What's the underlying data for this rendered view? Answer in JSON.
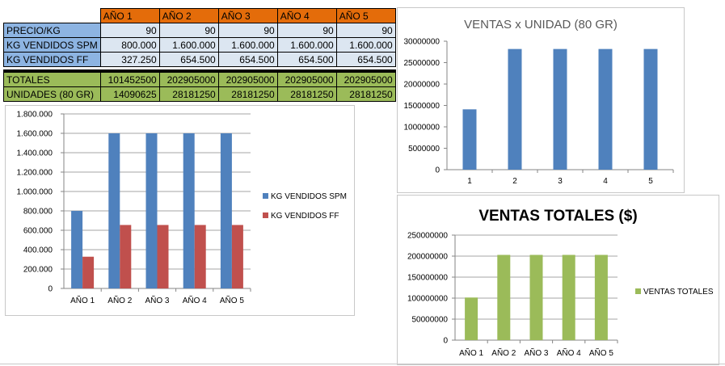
{
  "table": {
    "headers": [
      "AÑO 1",
      "AÑO 2",
      "AÑO 3",
      "AÑO 4",
      "AÑO 5"
    ],
    "rows": [
      {
        "label": "PRECIO/KG",
        "values": [
          "90",
          "90",
          "90",
          "90",
          "90"
        ]
      },
      {
        "label": "KG VENDIDOS SPM",
        "values": [
          "800.000",
          "1.600.000",
          "1.600.000",
          "1.600.000",
          "1.600.000"
        ]
      },
      {
        "label": "KG VENDIDOS FF",
        "values": [
          "327.250",
          "654.500",
          "654.500",
          "654.500",
          "654.500"
        ]
      },
      {
        "label": "TOTALES",
        "values": [
          "101452500",
          "202905000",
          "202905000",
          "202905000",
          "202905000"
        ]
      },
      {
        "label": "UNIDADES (80 GR)",
        "values": [
          "14090625",
          "28181250",
          "28181250",
          "28181250",
          "28181250"
        ]
      }
    ]
  },
  "colors": {
    "blue": "#4f81bd",
    "red": "#c0504d",
    "green": "#9bbb59",
    "header_orange": "#e46c0a"
  },
  "chart_data": [
    {
      "id": "kg",
      "type": "bar",
      "title": "",
      "categories": [
        "AÑO 1",
        "AÑO 2",
        "AÑO 3",
        "AÑO 4",
        "AÑO 5"
      ],
      "series": [
        {
          "name": "KG VENDIDOS SPM",
          "values": [
            800000,
            1600000,
            1600000,
            1600000,
            1600000
          ],
          "color": "#4f81bd"
        },
        {
          "name": "KG VENDIDOS FF",
          "values": [
            327250,
            654500,
            654500,
            654500,
            654500
          ],
          "color": "#c0504d"
        }
      ],
      "ylim": [
        0,
        1800000
      ],
      "yticks": [
        "0",
        "200.000",
        "400.000",
        "600.000",
        "800.000",
        "1.000.000",
        "1.200.000",
        "1.400.000",
        "1.600.000",
        "1.800.000"
      ],
      "grid": true,
      "legend": "right"
    },
    {
      "id": "unidad",
      "type": "bar",
      "title": "VENTAS x UNIDAD (80 GR)",
      "categories": [
        "1",
        "2",
        "3",
        "4",
        "5"
      ],
      "series": [
        {
          "values": [
            14090625,
            28181250,
            28181250,
            28181250,
            28181250
          ],
          "color": "#4f81bd"
        }
      ],
      "ylim": [
        0,
        30000000
      ],
      "yticks": [
        "0",
        "5000000",
        "10000000",
        "15000000",
        "20000000",
        "25000000",
        "30000000"
      ],
      "grid": false,
      "legend": "none"
    },
    {
      "id": "totales",
      "type": "bar",
      "title": "VENTAS TOTALES ($)",
      "categories": [
        "AÑO 1",
        "AÑO 2",
        "AÑO 3",
        "AÑO 4",
        "AÑO 5"
      ],
      "series": [
        {
          "name": "VENTAS TOTALES",
          "values": [
            101452500,
            202905000,
            202905000,
            202905000,
            202905000
          ],
          "color": "#9bbb59"
        }
      ],
      "ylim": [
        0,
        250000000
      ],
      "yticks": [
        "0",
        "50000000",
        "100000000",
        "150000000",
        "200000000",
        "250000000"
      ],
      "grid": true,
      "legend": "right"
    }
  ]
}
